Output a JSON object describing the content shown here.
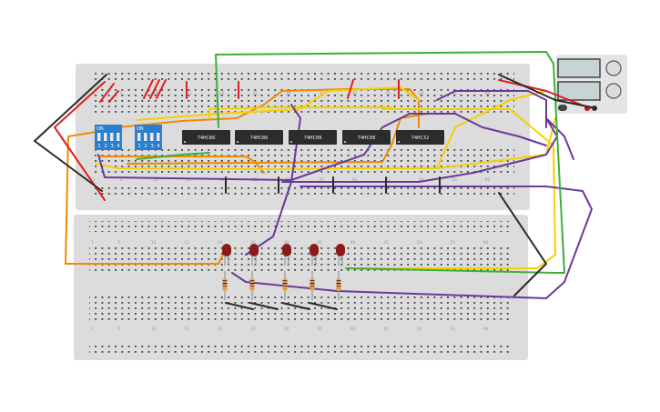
{
  "colors": {
    "board": "#dcdcdc",
    "hole": "#3a3a3a",
    "chip": "#2c2c2c",
    "switch": "#2a7fd0",
    "led": "#8b1a1a",
    "wire_orange": "#f08a00",
    "wire_yellow": "#f5d000",
    "wire_purple": "#6a3a9a",
    "wire_green": "#3ab03a",
    "wire_red": "#e02020",
    "wire_black": "#2a2a2a"
  },
  "chips": [
    {
      "label": "74HC86"
    },
    {
      "label": "74HC86"
    },
    {
      "label": "74HC08"
    },
    {
      "label": "74HC08"
    },
    {
      "label": "74HC32"
    }
  ],
  "dip_switches": [
    {
      "on_label": "ON",
      "numbers": [
        "1",
        "2",
        "3",
        "4"
      ]
    },
    {
      "on_label": "ON",
      "numbers": [
        "1",
        "2",
        "3",
        "4"
      ]
    }
  ],
  "column_numbers": [
    "1",
    "5",
    "10",
    "15",
    "20",
    "25",
    "30",
    "35",
    "40",
    "45",
    "50",
    "55",
    "60"
  ],
  "row_letters_top": [
    "j",
    "i",
    "h",
    "g",
    "f"
  ],
  "row_letters_bottom": [
    "e",
    "d",
    "c",
    "b",
    "a"
  ],
  "leds": 5,
  "resistors": 5,
  "power_supply": {
    "knob1": "",
    "knob2": ""
  }
}
